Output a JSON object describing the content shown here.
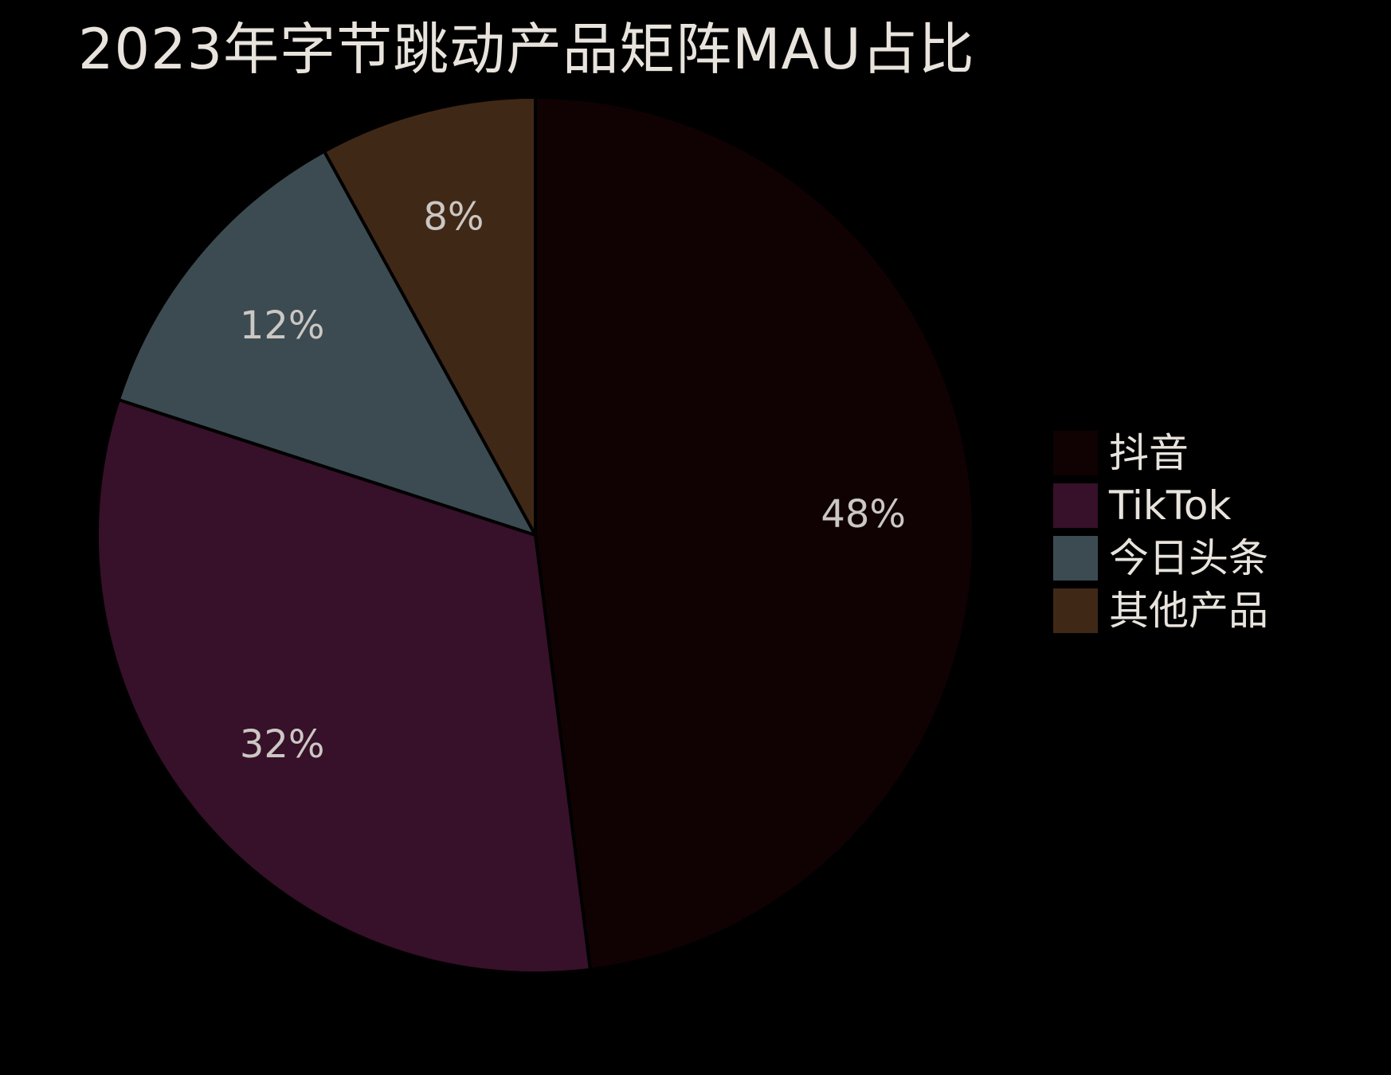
{
  "title": "2023年字节跳动产品矩阵MAU占比",
  "colors": {
    "background": "#000000",
    "title_text": "#e8e3dc",
    "percent_label_text": "#cbc7c3",
    "legend_text": "#e8e3dc",
    "wedge_stroke": "#000000"
  },
  "chart_data": {
    "type": "pie",
    "title": "2023年字节跳动产品矩阵MAU占比",
    "categories": [
      "抖音",
      "TikTok",
      "今日头条",
      "其他产品"
    ],
    "values": [
      48,
      32,
      12,
      8
    ],
    "labels": [
      "48%",
      "32%",
      "12%",
      "8%"
    ],
    "slice_colors": [
      "#100202",
      "#371029",
      "#3c4b51",
      "#402817"
    ],
    "start_angle_deg": 90,
    "counterclock": false,
    "legend_position": "center right",
    "label_radius_fraction": 0.75,
    "grid": false
  }
}
